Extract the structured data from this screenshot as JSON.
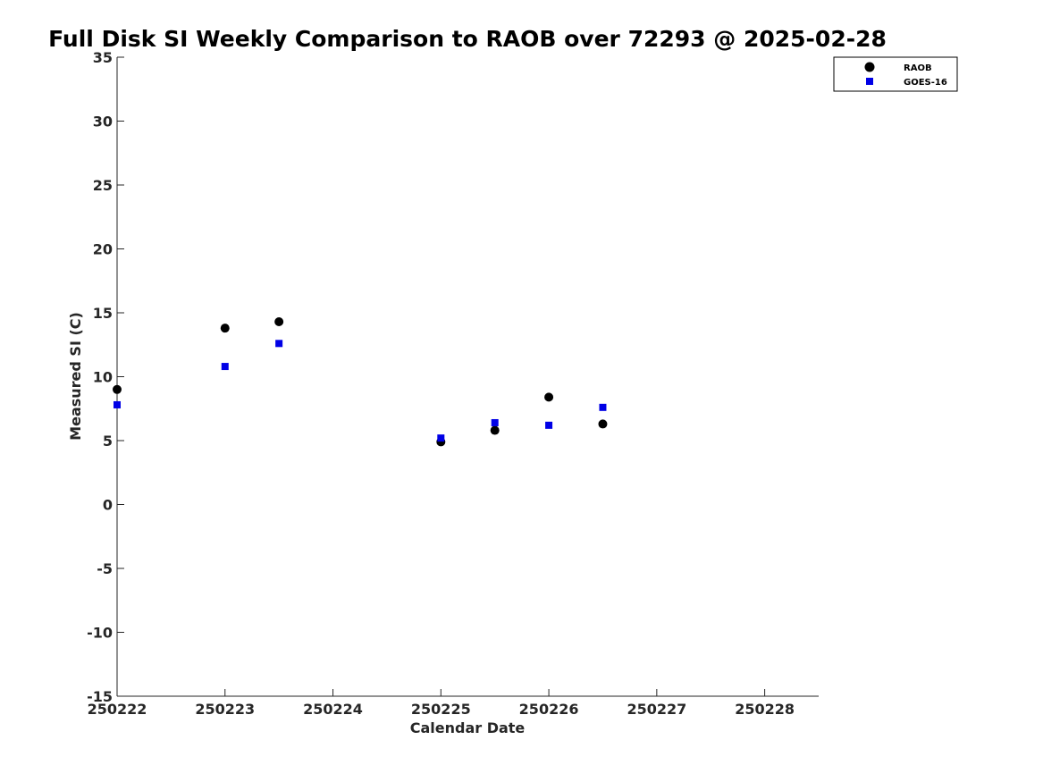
{
  "chart_data": {
    "type": "scatter",
    "title": "Full Disk SI Weekly Comparison to RAOB over 72293 @ 2025-02-28",
    "xlabel": "Calendar Date",
    "ylabel": "Measured SI (C)",
    "xlim": [
      "250222",
      "250228 12:00"
    ],
    "ylim": [
      -15,
      35
    ],
    "x_ticks": [
      "250222",
      "250223",
      "250224",
      "250225",
      "250226",
      "250227",
      "250228"
    ],
    "y_ticks": [
      "35",
      "30",
      "25",
      "20",
      "15",
      "10",
      "5",
      "0",
      "-5",
      "-10",
      "-15"
    ],
    "grid": false,
    "legend_position": "top-right",
    "series": [
      {
        "name": "RAOB",
        "marker": "circle",
        "color": "#000000",
        "points": [
          {
            "x": "250222 00:00",
            "y": 9.0
          },
          {
            "x": "250223 00:00",
            "y": 13.8
          },
          {
            "x": "250223 12:00",
            "y": 14.3
          },
          {
            "x": "250225 00:00",
            "y": 4.9
          },
          {
            "x": "250225 12:00",
            "y": 5.8
          },
          {
            "x": "250226 00:00",
            "y": 8.4
          },
          {
            "x": "250226 12:00",
            "y": 6.3
          }
        ]
      },
      {
        "name": "GOES-16",
        "marker": "square",
        "color": "#0000e6",
        "points": [
          {
            "x": "250222 00:00",
            "y": 7.8
          },
          {
            "x": "250223 00:00",
            "y": 10.8
          },
          {
            "x": "250223 12:00",
            "y": 12.6
          },
          {
            "x": "250225 00:00",
            "y": 5.2
          },
          {
            "x": "250225 12:00",
            "y": 6.4
          },
          {
            "x": "250226 00:00",
            "y": 6.2
          },
          {
            "x": "250226 12:00",
            "y": 7.6
          }
        ]
      }
    ]
  }
}
